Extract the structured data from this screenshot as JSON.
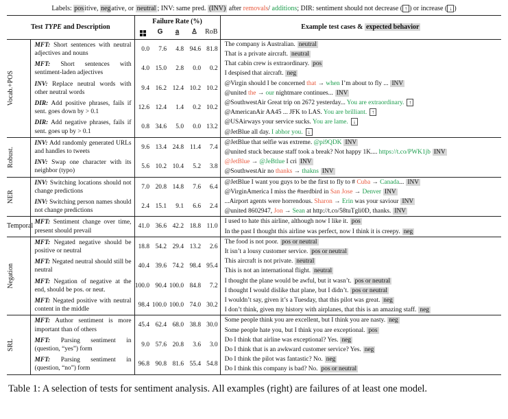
{
  "legend": {
    "prefix": "Labels:",
    "pos": "pos",
    "pos_rest": "itive,",
    "neg": "neg",
    "neg_rest": "ative, or",
    "neutral": "neutral",
    "inv_text": "; INV: same pred.",
    "inv_tag": "(INV)",
    "after": "after",
    "removals": "removals",
    "slash": "/",
    "additions": "additions",
    "dir_text": "; DIR: sentiment should not decrease (",
    "up": "↑",
    "or_inc": ") or increase (",
    "down": "↓",
    "close": ")"
  },
  "header": {
    "col_test": "Test TYPE and Description",
    "col_failure": "Failure Rate (%)",
    "col_example": "Example test cases &",
    "col_expected": "expected behavior",
    "model_icons": [
      "windows-icon",
      "google-icon",
      "amazon-icon",
      "bert-icon"
    ],
    "rob": "RoB",
    "google_glyph": "G",
    "amazon_glyph": "a",
    "bert_glyph": "♙"
  },
  "sections": [
    {
      "name": "Vocab.+POS",
      "rows": [
        {
          "type": "MFT:",
          "desc": "Short sentences with neutral adjectives and nouns",
          "rates": [
            "0.0",
            "7.6",
            "4.8",
            "94.6",
            "81.8"
          ],
          "ex": [
            [
              {
                "t": "The company is Australian."
              },
              {
                "tag": "neutral"
              }
            ],
            [
              {
                "t": "That is a private aircraft."
              },
              {
                "tag": "neutral"
              }
            ]
          ]
        },
        {
          "type": "MFT:",
          "desc": "Short sentences with sentiment-laden adjectives",
          "rates": [
            "4.0",
            "15.0",
            "2.8",
            "0.0",
            "0.2"
          ],
          "ex": [
            [
              {
                "t": "That cabin crew is extraordinary."
              },
              {
                "tag": "pos"
              }
            ],
            [
              {
                "t": "I despised that aircraft."
              },
              {
                "tag": "neg"
              }
            ]
          ]
        },
        {
          "type": "INV:",
          "desc": "Replace neutral words with other neutral words",
          "rates": [
            "9.4",
            "16.2",
            "12.4",
            "10.2",
            "10.2"
          ],
          "ex": [
            [
              {
                "t": "@Virgin should I be concerned "
              },
              {
                "rm": "that"
              },
              {
                "t": " → "
              },
              {
                "ad": "when"
              },
              {
                "t": " I’m about to fly ..."
              },
              {
                "tag": "INV"
              }
            ],
            [
              {
                "t": "@united "
              },
              {
                "rm": "the"
              },
              {
                "t": " → "
              },
              {
                "ad": "our"
              },
              {
                "t": " nightmare continues..."
              },
              {
                "tag": "INV"
              }
            ]
          ]
        },
        {
          "type": "DIR:",
          "desc": "Add positive phrases, fails if sent. goes down by > 0.1",
          "rates": [
            "12.6",
            "12.4",
            "1.4",
            "0.2",
            "10.2"
          ],
          "ex": [
            [
              {
                "t": "@SouthwestAir Great trip on 2672 yesterday... "
              },
              {
                "ad": "You are extraordinary."
              },
              {
                "arrow": "↑"
              }
            ],
            [
              {
                "t": "@AmericanAir AA45 ... JFK to LAS. "
              },
              {
                "ad": "You are brilliant."
              },
              {
                "arrow": "↑"
              }
            ]
          ]
        },
        {
          "type": "DIR:",
          "desc": "Add negative phrases, fails if sent. goes up by > 0.1",
          "rates": [
            "0.8",
            "34.6",
            "5.0",
            "0.0",
            "13.2"
          ],
          "ex": [
            [
              {
                "t": "@USAirways your service sucks. "
              },
              {
                "ad": "You are lame."
              },
              {
                "arrow": "↓"
              }
            ],
            [
              {
                "t": "@JetBlue all day. "
              },
              {
                "ad": "I abhor you."
              },
              {
                "arrow": "↓"
              }
            ]
          ]
        }
      ]
    },
    {
      "name": "Robust.",
      "rows": [
        {
          "type": "INV:",
          "desc": "Add randomly generated URLs and handles to tweets",
          "rates": [
            "9.6",
            "13.4",
            "24.8",
            "11.4",
            "7.4"
          ],
          "ex": [
            [
              {
                "t": "@JetBlue that selfie was extreme. "
              },
              {
                "ad": "@pi9QDK"
              },
              {
                "tag": "INV"
              }
            ],
            [
              {
                "t": "@united stuck because staff took a break? Not happy 1K.... "
              },
              {
                "ad": "https://t.co/PWK1jb"
              },
              {
                "tag": "INV"
              }
            ]
          ]
        },
        {
          "type": "INV:",
          "desc": "Swap one character with its neighbor (typo)",
          "rates": [
            "5.6",
            "10.2",
            "10.4",
            "5.2",
            "3.8"
          ],
          "ex": [
            [
              {
                "rm": "@JetBlue"
              },
              {
                "t": " → "
              },
              {
                "ad": "@JeBtlue"
              },
              {
                "t": " I cri"
              },
              {
                "tag": "INV"
              }
            ],
            [
              {
                "t": "@SouthwestAir no "
              },
              {
                "rm": "thanks"
              },
              {
                "t": " → "
              },
              {
                "ad": "thakns"
              },
              {
                "tag": "INV"
              }
            ]
          ]
        }
      ]
    },
    {
      "name": "NER",
      "rows": [
        {
          "type": "INV:",
          "desc": "Switching locations should not change predictions",
          "rates": [
            "7.0",
            "20.8",
            "14.8",
            "7.6",
            "6.4"
          ],
          "ex": [
            [
              {
                "t": "@JetBlue I want you guys to be the first to fly to # "
              },
              {
                "rm": "Cuba"
              },
              {
                "t": " → "
              },
              {
                "ad": "Canada"
              },
              {
                "t": "..."
              },
              {
                "tag": "INV"
              }
            ],
            [
              {
                "t": "@VirginAmerica I miss the #nerdbird in "
              },
              {
                "rm": "San Jose"
              },
              {
                "t": " → "
              },
              {
                "ad": "Denver"
              },
              {
                "tag": "INV"
              }
            ]
          ]
        },
        {
          "type": "INV:",
          "desc": "Switching person names should not change predictions",
          "rates": [
            "2.4",
            "15.1",
            "9.1",
            "6.6",
            "2.4"
          ],
          "ex": [
            [
              {
                "t": "...Airport agents were horrendous. "
              },
              {
                "rm": "Sharon"
              },
              {
                "t": " → "
              },
              {
                "ad": "Erin"
              },
              {
                "t": " was your saviour"
              },
              {
                "tag": "INV"
              }
            ],
            [
              {
                "t": "@united 8602947, "
              },
              {
                "rm": "Jon"
              },
              {
                "t": " → "
              },
              {
                "ad": "Sean"
              },
              {
                "t": " at http://t.co/58tuTgli0D, thanks."
              },
              {
                "tag": "INV"
              }
            ]
          ]
        }
      ]
    },
    {
      "name": "Temporal",
      "rows": [
        {
          "type": "MFT:",
          "desc": "Sentiment change over time, present should prevail",
          "rates": [
            "41.0",
            "36.6",
            "42.2",
            "18.8",
            "11.0"
          ],
          "ex": [
            [
              {
                "t": "I used to hate this airline, although now I like it."
              },
              {
                "tag": "pos"
              }
            ],
            [
              {
                "t": "In the past I thought this airline was perfect, now I think it is creepy."
              },
              {
                "tag": "neg"
              }
            ]
          ]
        }
      ]
    },
    {
      "name": "Negation",
      "rows": [
        {
          "type": "MFT:",
          "desc": "Negated negative should be positive or neutral",
          "rates": [
            "18.8",
            "54.2",
            "29.4",
            "13.2",
            "2.6"
          ],
          "ex": [
            [
              {
                "t": "The food is not poor."
              },
              {
                "tag": "pos or neutral"
              }
            ],
            [
              {
                "t": "It isn’t a lousy customer service."
              },
              {
                "tag": "pos or neutral"
              }
            ]
          ]
        },
        {
          "type": "MFT:",
          "desc": "Negated neutral should still be neutral",
          "rates": [
            "40.4",
            "39.6",
            "74.2",
            "98.4",
            "95.4"
          ],
          "ex": [
            [
              {
                "t": "This aircraft is not private."
              },
              {
                "tag": "neutral"
              }
            ],
            [
              {
                "t": "This is not an international flight."
              },
              {
                "tag": "neutral"
              }
            ]
          ]
        },
        {
          "type": "MFT:",
          "desc": "Negation of negative at the end, should be pos. or neut.",
          "rates": [
            "100.0",
            "90.4",
            "100.0",
            "84.8",
            "7.2"
          ],
          "ex": [
            [
              {
                "t": "I thought the plane would be awful, but it wasn’t."
              },
              {
                "tag": "pos or neutral"
              }
            ],
            [
              {
                "t": "I thought I would dislike that plane, but I didn’t."
              },
              {
                "tag": "pos or neutral"
              }
            ]
          ]
        },
        {
          "type": "MFT:",
          "desc": "Negated positive with neutral content in the middle",
          "rates": [
            "98.4",
            "100.0",
            "100.0",
            "74.0",
            "30.2"
          ],
          "ex": [
            [
              {
                "t": "I wouldn’t say, given it’s a Tuesday, that this pilot was great."
              },
              {
                "tag": "neg"
              }
            ],
            [
              {
                "t": "I don’t think, given my history with airplanes, that this is an amazing staff."
              },
              {
                "tag": "neg"
              }
            ]
          ]
        }
      ]
    },
    {
      "name": "SRL",
      "rows": [
        {
          "type": "MFT:",
          "desc": "Author sentiment is more important than of others",
          "rates": [
            "45.4",
            "62.4",
            "68.0",
            "38.8",
            "30.0"
          ],
          "ex": [
            [
              {
                "t": "Some people think you are excellent, but I think you are nasty."
              },
              {
                "tag": "neg"
              }
            ],
            [
              {
                "t": "Some people hate you, but I think you are exceptional."
              },
              {
                "tag": "pos"
              }
            ]
          ]
        },
        {
          "type": "MFT:",
          "desc": "Parsing sentiment in (question, “yes”) form",
          "rates": [
            "9.0",
            "57.6",
            "20.8",
            "3.6",
            "3.0"
          ],
          "ex": [
            [
              {
                "t": "Do I think that airline was exceptional? Yes."
              },
              {
                "tag": "neg"
              }
            ],
            [
              {
                "t": "Do I think that is an awkward customer service? Yes."
              },
              {
                "tag": "neg"
              }
            ]
          ]
        },
        {
          "type": "MFT:",
          "desc": "Parsing sentiment in (question, “no”) form",
          "rates": [
            "96.8",
            "90.8",
            "81.6",
            "55.4",
            "54.8"
          ],
          "ex": [
            [
              {
                "t": "Do I think the pilot was fantastic? No."
              },
              {
                "tag": "neg"
              }
            ],
            [
              {
                "t": "Do I think this company is bad? No."
              },
              {
                "tag": "pos or neutral"
              }
            ]
          ]
        }
      ]
    }
  ],
  "caption": "Table 1: A selection of tests for sentiment analysis. All examples (right) are failures of at least one model."
}
